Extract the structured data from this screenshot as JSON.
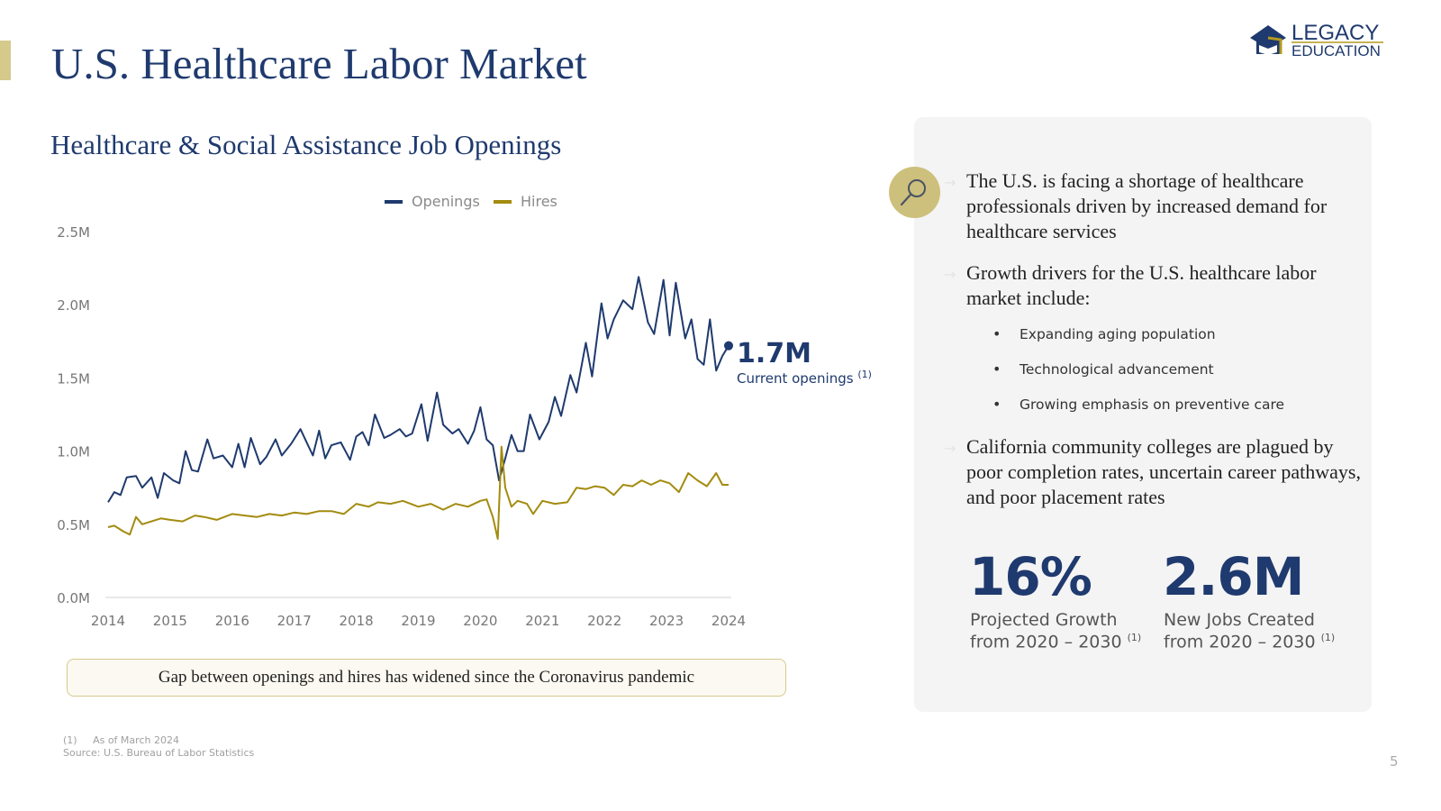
{
  "title": "U.S. Healthcare Labor Market",
  "logo": {
    "line1": "LEGACY",
    "line2": "EDUCATION"
  },
  "chart_section": {
    "subtitle": "Healthcare & Social Assistance Job Openings",
    "annotation_value": "1.7M",
    "annotation_label": "Current openings",
    "annotation_note": "(1)",
    "callout": "Gap between openings and hires has widened since the Coronavirus pandemic"
  },
  "chart_data": {
    "type": "line",
    "title": "Healthcare & Social Assistance Job Openings",
    "legend_position": "top-center",
    "grid": false,
    "ylim": [
      0,
      2.5
    ],
    "xlim": [
      2014,
      2024
    ],
    "y_unit": "M",
    "y_ticks": [
      "0.0M",
      "0.5M",
      "1.0M",
      "1.5M",
      "2.0M",
      "2.5M"
    ],
    "y_tick_values": [
      0,
      0.5,
      1.0,
      1.5,
      2.0,
      2.5
    ],
    "x_ticks": [
      "2014",
      "2015",
      "2016",
      "2017",
      "2018",
      "2019",
      "2020",
      "2021",
      "2022",
      "2023",
      "2024"
    ],
    "series": [
      {
        "name": "Openings",
        "color": "#1f3a6e",
        "x": [
          2014.0,
          2014.1,
          2014.2,
          2014.3,
          2014.45,
          2014.55,
          2014.7,
          2014.8,
          2014.9,
          2015.05,
          2015.15,
          2015.25,
          2015.35,
          2015.45,
          2015.6,
          2015.7,
          2015.85,
          2016.0,
          2016.1,
          2016.2,
          2016.3,
          2016.45,
          2016.55,
          2016.7,
          2016.8,
          2016.95,
          2017.1,
          2017.2,
          2017.3,
          2017.4,
          2017.5,
          2017.6,
          2017.75,
          2017.9,
          2018.0,
          2018.1,
          2018.2,
          2018.3,
          2018.45,
          2018.55,
          2018.7,
          2018.8,
          2018.9,
          2019.05,
          2019.15,
          2019.3,
          2019.4,
          2019.55,
          2019.65,
          2019.8,
          2019.9,
          2020.0,
          2020.1,
          2020.2,
          2020.3,
          2020.4,
          2020.5,
          2020.6,
          2020.7,
          2020.8,
          2020.95,
          2021.1,
          2021.2,
          2021.3,
          2021.45,
          2021.55,
          2021.7,
          2021.8,
          2021.95,
          2022.05,
          2022.15,
          2022.3,
          2022.45,
          2022.55,
          2022.7,
          2022.8,
          2022.95,
          2023.05,
          2023.15,
          2023.3,
          2023.4,
          2023.5,
          2023.6,
          2023.7,
          2023.8,
          2023.9,
          2024.0
        ],
        "y": [
          0.65,
          0.72,
          0.7,
          0.82,
          0.83,
          0.75,
          0.82,
          0.68,
          0.85,
          0.8,
          0.78,
          1.0,
          0.87,
          0.86,
          1.08,
          0.95,
          0.97,
          0.89,
          1.05,
          0.89,
          1.09,
          0.91,
          0.96,
          1.08,
          0.97,
          1.05,
          1.15,
          1.06,
          0.97,
          1.14,
          0.95,
          1.04,
          1.06,
          0.94,
          1.1,
          1.13,
          1.04,
          1.25,
          1.09,
          1.11,
          1.15,
          1.1,
          1.12,
          1.32,
          1.07,
          1.4,
          1.18,
          1.12,
          1.15,
          1.05,
          1.14,
          1.3,
          1.08,
          1.04,
          0.8,
          0.95,
          1.11,
          1.0,
          1.0,
          1.25,
          1.08,
          1.2,
          1.37,
          1.24,
          1.52,
          1.4,
          1.74,
          1.51,
          2.01,
          1.77,
          1.9,
          2.03,
          1.97,
          2.19,
          1.88,
          1.8,
          2.17,
          1.79,
          2.15,
          1.77,
          1.9,
          1.63,
          1.59,
          1.9,
          1.55,
          1.65,
          1.72
        ]
      },
      {
        "name": "Hires",
        "color": "#a38b0f",
        "x": [
          2014.0,
          2014.1,
          2014.25,
          2014.35,
          2014.45,
          2014.55,
          2014.7,
          2014.85,
          2015.0,
          2015.2,
          2015.4,
          2015.55,
          2015.75,
          2016.0,
          2016.2,
          2016.4,
          2016.6,
          2016.8,
          2017.0,
          2017.2,
          2017.4,
          2017.6,
          2017.8,
          2018.0,
          2018.2,
          2018.35,
          2018.55,
          2018.75,
          2019.0,
          2019.2,
          2019.4,
          2019.6,
          2019.8,
          2020.0,
          2020.1,
          2020.2,
          2020.28,
          2020.34,
          2020.4,
          2020.5,
          2020.6,
          2020.75,
          2020.85,
          2021.0,
          2021.2,
          2021.4,
          2021.55,
          2021.7,
          2021.85,
          2022.0,
          2022.15,
          2022.3,
          2022.45,
          2022.6,
          2022.75,
          2022.9,
          2023.05,
          2023.2,
          2023.35,
          2023.5,
          2023.65,
          2023.8,
          2023.9,
          2024.0
        ],
        "y": [
          0.48,
          0.49,
          0.45,
          0.43,
          0.55,
          0.5,
          0.52,
          0.54,
          0.53,
          0.52,
          0.56,
          0.55,
          0.53,
          0.57,
          0.56,
          0.55,
          0.57,
          0.56,
          0.58,
          0.57,
          0.59,
          0.59,
          0.57,
          0.64,
          0.62,
          0.65,
          0.64,
          0.66,
          0.62,
          0.64,
          0.6,
          0.64,
          0.62,
          0.66,
          0.67,
          0.55,
          0.4,
          1.03,
          0.75,
          0.62,
          0.66,
          0.64,
          0.57,
          0.66,
          0.64,
          0.65,
          0.75,
          0.74,
          0.76,
          0.75,
          0.7,
          0.77,
          0.76,
          0.8,
          0.77,
          0.8,
          0.78,
          0.72,
          0.85,
          0.8,
          0.76,
          0.85,
          0.77,
          0.77
        ]
      }
    ]
  },
  "panel": {
    "bullets": [
      "The U.S. is facing a shortage of healthcare professionals driven by increased demand for healthcare services",
      "Growth drivers for the U.S. healthcare labor market include:",
      "California community colleges are plagued by poor completion rates, uncertain career pathways, and poor placement rates"
    ],
    "arrow": "→",
    "sub_bullets": [
      "Expanding aging population",
      "Technological advancement",
      "Growing emphasis on preventive care"
    ],
    "stats": [
      {
        "value": "16%",
        "label1": "Projected Growth",
        "label2": "from 2020 – 2030",
        "note": "(1)"
      },
      {
        "value": "2.6M",
        "label1": "New Jobs Created",
        "label2": "from 2020 – 2030",
        "note": "(1)"
      }
    ],
    "icon": "magnifying-glass-icon"
  },
  "footnotes": {
    "note1_num": "(1)",
    "note1": "As of March 2024",
    "source": "Source: U.S. Bureau of Labor Statistics"
  },
  "page_number": "5",
  "colors": {
    "navy": "#1f3a6e",
    "gold": "#a38b0f",
    "accent_gold": "#cdc07c",
    "panel_bg": "#f4f4f4"
  }
}
